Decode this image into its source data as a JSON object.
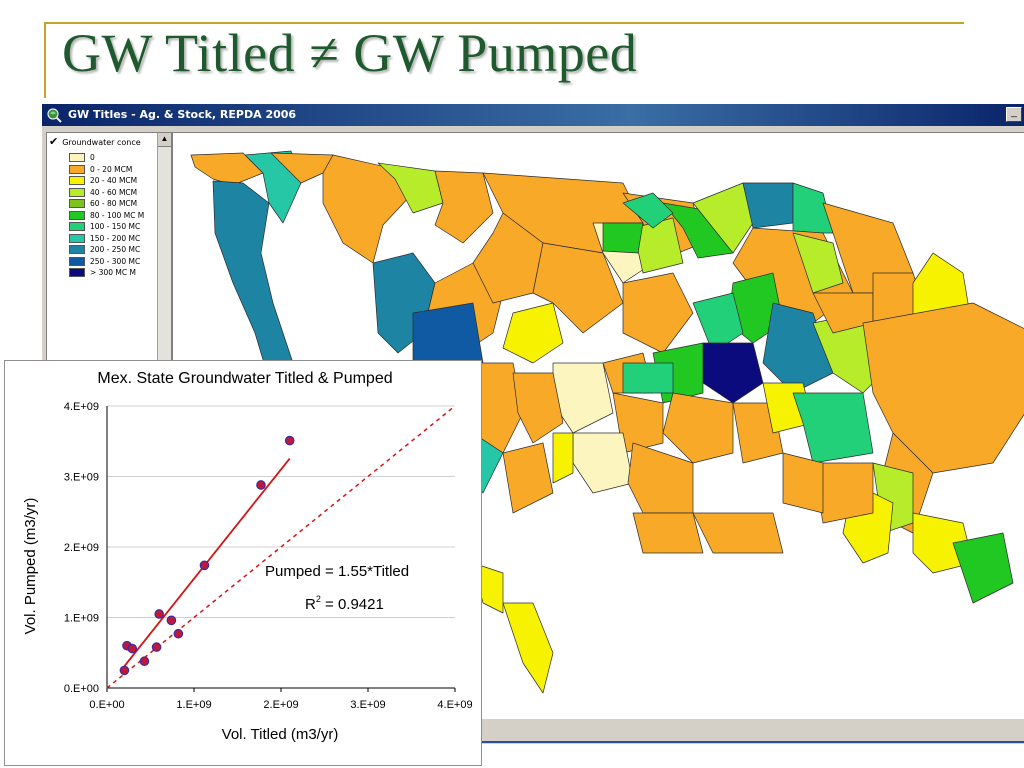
{
  "slide": {
    "title": "GW Titled ≠ GW Pumped",
    "title_color": "#1e5a2e",
    "accent_line_color": "#c8a22a"
  },
  "window": {
    "title": "GW Titles - Ag. & Stock, REPDA 2006",
    "app_icon": "globe-magnifier-icon",
    "minimize_label": "_"
  },
  "legend": {
    "header": "Groundwater conce",
    "items": [
      {
        "label": "0",
        "color": "#fdf5c0"
      },
      {
        "label": "0 - 20 MCM",
        "color": "#f8a928"
      },
      {
        "label": "20 - 40 MCM",
        "color": "#f7f200"
      },
      {
        "label": "40 - 60 MCM",
        "color": "#b6ec2a"
      },
      {
        "label": "60 - 80 MCM",
        "color": "#7fc11e"
      },
      {
        "label": "80 - 100 MC M",
        "color": "#22c822"
      },
      {
        "label": "100 - 150 MC",
        "color": "#22d07a"
      },
      {
        "label": "150 - 200 MC",
        "color": "#26c7a6"
      },
      {
        "label": "200 - 250 MC",
        "color": "#1d84a4"
      },
      {
        "label": "250 - 300 MC",
        "color": "#0f5aa3"
      },
      {
        "label": "> 300 MC M",
        "color": "#0b0b7e"
      }
    ]
  },
  "chart_data": {
    "type": "scatter",
    "title": "Mex. State Groundwater Titled & Pumped",
    "xlabel": "Vol. Titled (m3/yr)",
    "ylabel": "Vol. Pumped (m3/yr)",
    "xlim": [
      0,
      4000000000
    ],
    "ylim": [
      0,
      4000000000
    ],
    "x_ticks": [
      "0.E+00",
      "1.E+09",
      "2.E+09",
      "3.E+09",
      "4.E+09"
    ],
    "y_ticks": [
      "0.E+00",
      "1.E+09",
      "2.E+09",
      "3.E+09",
      "4.E+09"
    ],
    "grid": true,
    "point_color": "#c0183a",
    "point_edge": "#3a2aa0",
    "fit_color": "#d21414",
    "points": [
      {
        "x": 200000000,
        "y": 250000000
      },
      {
        "x": 230000000,
        "y": 600000000
      },
      {
        "x": 290000000,
        "y": 560000000
      },
      {
        "x": 430000000,
        "y": 380000000
      },
      {
        "x": 570000000,
        "y": 580000000
      },
      {
        "x": 600000000,
        "y": 1050000000
      },
      {
        "x": 740000000,
        "y": 960000000
      },
      {
        "x": 820000000,
        "y": 770000000
      },
      {
        "x": 1120000000,
        "y": 1740000000
      },
      {
        "x": 1770000000,
        "y": 2880000000
      },
      {
        "x": 2100000000,
        "y": 3510000000
      }
    ],
    "trendline": {
      "slope": 1.55,
      "x_start": 200000000,
      "x_end": 2100000000
    },
    "reference_line": {
      "slope": 1,
      "style": "dashed"
    },
    "equation": "Pumped = 1.55*Titled",
    "r2_label": "R",
    "r2_sup": "2",
    "r2_value": " = 0.9421"
  }
}
